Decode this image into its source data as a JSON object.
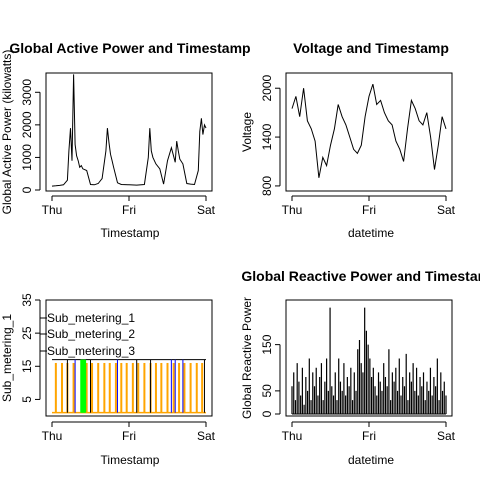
{
  "colors": {
    "ink": "#000000",
    "sub_metering_1": "#000000",
    "sub_metering_2": "#ff0000",
    "sub_metering_3": "#0000ff",
    "orange_series": "#ffa500",
    "green_series": "#00ff00"
  },
  "chart_data": [
    {
      "type": "line",
      "title": "Global Active Power and Timestamp",
      "xlabel": "Timestamp",
      "ylabel": "Global Active Power (kilowatts)",
      "xticks": [
        "Thu",
        "Fri",
        "Sat"
      ],
      "xlim": [
        0,
        2
      ],
      "yticks": [
        0,
        1000,
        2000,
        3000
      ],
      "ylim": [
        0,
        3500
      ],
      "x": [
        0.0,
        0.05,
        0.1,
        0.15,
        0.2,
        0.22,
        0.24,
        0.26,
        0.28,
        0.3,
        0.32,
        0.34,
        0.36,
        0.38,
        0.4,
        0.45,
        0.5,
        0.55,
        0.6,
        0.65,
        0.7,
        0.72,
        0.74,
        0.76,
        0.78,
        0.8,
        0.85,
        0.9,
        1.0,
        1.1,
        1.2,
        1.25,
        1.27,
        1.29,
        1.31,
        1.33,
        1.35,
        1.4,
        1.45,
        1.5,
        1.55,
        1.6,
        1.62,
        1.64,
        1.66,
        1.7,
        1.75,
        1.8,
        1.85,
        1.9,
        1.92,
        1.94,
        1.96,
        1.98,
        2.0
      ],
      "y": [
        120,
        130,
        140,
        160,
        300,
        1200,
        1900,
        900,
        3550,
        1400,
        1050,
        900,
        700,
        750,
        650,
        600,
        170,
        160,
        200,
        350,
        1200,
        1900,
        1450,
        1100,
        900,
        700,
        220,
        170,
        160,
        150,
        170,
        1000,
        1900,
        1200,
        1000,
        900,
        800,
        650,
        180,
        900,
        1300,
        850,
        1500,
        1200,
        950,
        800,
        200,
        180,
        170,
        600,
        1800,
        2200,
        1700,
        2000,
        1900
      ]
    },
    {
      "type": "line",
      "title": "Voltage and Timestamp",
      "xlabel": "datetime",
      "ylabel": "Voltage",
      "xticks": [
        "Thu",
        "Fri",
        "Sat"
      ],
      "xlim": [
        0,
        2
      ],
      "yticks": [
        800,
        1400,
        2000
      ],
      "ylim": [
        750,
        2150
      ],
      "x": [
        0.0,
        0.05,
        0.1,
        0.15,
        0.2,
        0.25,
        0.3,
        0.35,
        0.4,
        0.45,
        0.5,
        0.55,
        0.6,
        0.65,
        0.7,
        0.75,
        0.8,
        0.85,
        0.9,
        0.95,
        1.0,
        1.05,
        1.1,
        1.15,
        1.2,
        1.25,
        1.3,
        1.35,
        1.4,
        1.45,
        1.5,
        1.55,
        1.6,
        1.65,
        1.7,
        1.75,
        1.8,
        1.85,
        1.9,
        1.95,
        2.0
      ],
      "y": [
        1750,
        1900,
        1650,
        2000,
        1600,
        1500,
        1350,
        900,
        1150,
        1050,
        1300,
        1500,
        1800,
        1650,
        1550,
        1400,
        1250,
        1200,
        1300,
        1650,
        1900,
        2050,
        1800,
        1850,
        1700,
        1600,
        1550,
        1350,
        1250,
        1100,
        1500,
        1850,
        1750,
        1600,
        1550,
        1700,
        1400,
        1000,
        1300,
        1650,
        1500
      ]
    },
    {
      "type": "line",
      "title": "",
      "xlabel": "Timestamp",
      "ylabel": "Sub_metering_1",
      "xticks": [
        "Thu",
        "Fri",
        "Sat"
      ],
      "xlim": [
        0,
        2
      ],
      "yticks": [
        5,
        15,
        25,
        35
      ],
      "ylim": [
        0,
        35
      ],
      "legend_position": "top-left",
      "series": [
        {
          "name": "Sub_metering_1",
          "x": [
            0.35,
            0.36,
            0.37,
            0.38,
            0.39,
            0.4,
            0.41,
            0.42,
            0.43,
            0.44
          ],
          "y": [
            16,
            1,
            16,
            1,
            16,
            1,
            16,
            1,
            16,
            1
          ]
        },
        {
          "name": "Sub_metering_2",
          "x": [
            0.0,
            0.1,
            0.2,
            0.3,
            0.4,
            0.5,
            0.6,
            0.7,
            0.8,
            0.9,
            1.0,
            1.1,
            1.2,
            1.3,
            1.4,
            1.5,
            1.6,
            1.7,
            1.8,
            1.9,
            2.0
          ],
          "y": [
            1,
            1,
            1,
            1,
            1,
            1,
            1,
            1,
            1,
            1,
            1,
            1,
            1,
            1,
            1,
            1,
            1,
            1,
            1,
            1,
            1
          ]
        },
        {
          "name": "Sub_metering_3",
          "x": [
            0.0,
            0.1,
            0.2,
            0.3,
            0.4,
            0.5,
            0.6,
            0.7,
            0.8,
            0.9,
            1.0,
            1.1,
            1.2,
            1.3,
            1.4,
            1.5,
            1.6,
            1.7,
            1.8,
            1.9,
            2.0
          ],
          "y": [
            1,
            1,
            1,
            1,
            1,
            1,
            1,
            1,
            1,
            1,
            1,
            1,
            1,
            1,
            1,
            1,
            1,
            1,
            1,
            1,
            1
          ]
        }
      ],
      "baseline": 17,
      "orange_spikes_x": [
        0.05,
        0.13,
        0.2,
        0.28,
        0.45,
        0.52,
        0.6,
        0.68,
        0.75,
        0.83,
        0.9,
        0.97,
        1.05,
        1.12,
        1.2,
        1.28,
        1.35,
        1.42,
        1.5,
        1.58,
        1.65,
        1.72,
        1.8,
        1.88,
        1.95
      ],
      "orange_spike_height": 16,
      "green_spikes_x": [
        0.38,
        0.39,
        0.4,
        0.41,
        0.42,
        0.43
      ],
      "green_spike_height": 17,
      "blue_markers_x": [
        0.3,
        0.85,
        1.55,
        1.6,
        1.7
      ],
      "black_markers_x": [
        0.2,
        0.5,
        1.1,
        1.28,
        1.98
      ]
    },
    {
      "type": "line",
      "title": "Global Reactive Power and Timestamp",
      "xlabel": "datetime",
      "ylabel": "Global Reactive Power",
      "xticks": [
        "Thu",
        "Fri",
        "Sat"
      ],
      "xlim": [
        0,
        2
      ],
      "yticks": [
        0,
        50,
        150
      ],
      "ylim": [
        0,
        240
      ],
      "spike_heights": [
        60,
        90,
        30,
        110,
        70,
        40,
        100,
        20,
        80,
        50,
        120,
        30,
        90,
        60,
        100,
        40,
        80,
        110,
        30,
        70,
        120,
        50,
        230,
        60,
        40,
        90,
        30,
        120,
        70,
        50,
        110,
        40,
        80,
        60,
        100,
        30,
        90,
        50,
        140,
        160,
        110,
        90,
        230,
        180,
        150,
        120,
        80,
        100,
        60,
        40,
        90,
        70,
        50,
        110,
        80,
        60,
        140,
        30,
        90,
        70,
        100,
        50,
        120,
        40,
        80,
        60,
        130,
        30,
        90,
        70,
        110,
        50,
        100,
        40,
        80,
        60,
        90,
        30,
        70,
        50,
        100,
        40,
        80,
        60,
        120,
        30,
        90,
        50,
        70,
        40
      ]
    }
  ]
}
